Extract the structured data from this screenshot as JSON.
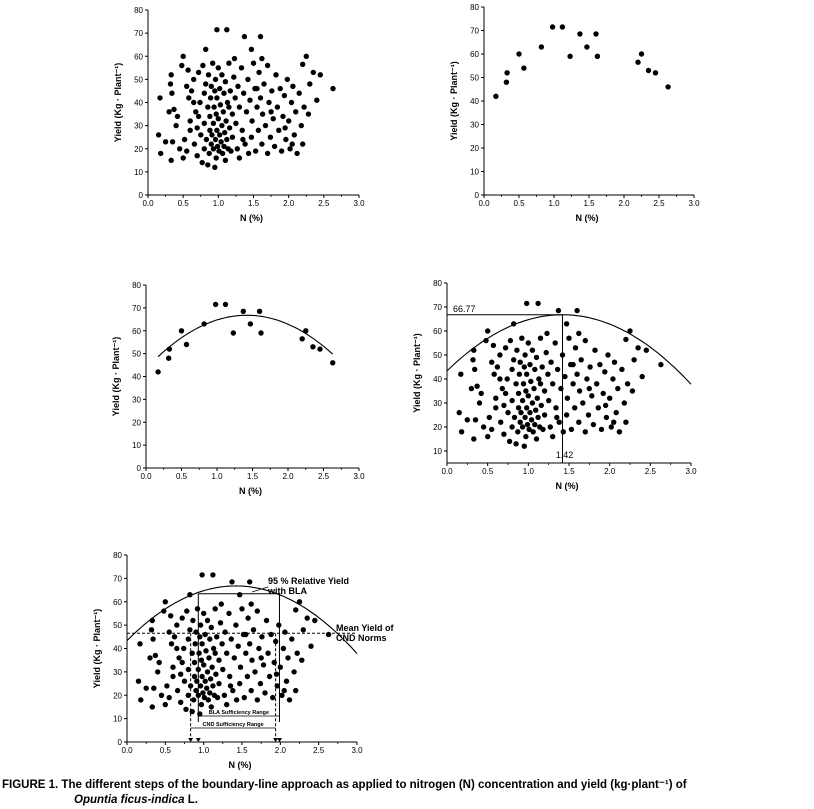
{
  "caption": {
    "line1": "FIGURE 1. The different steps of the boundary-line approach as applied to nitrogen (N) concentration and yield (kg·plant⁻¹) of",
    "species": "Opuntia ficus-indica",
    "suffix": " L."
  },
  "chart_data": [
    {
      "id": "a",
      "type": "scatter",
      "xlabel": "N (%)",
      "ylabel": "Yield (Kg · Plant⁻¹)",
      "xlim": [
        0,
        3
      ],
      "ylim": [
        0,
        80
      ],
      "xticks": [
        "0.0",
        "0.5",
        "1.0",
        "1.5",
        "2.0",
        "2.5",
        "3.0"
      ],
      "yticks": [
        "0",
        "10",
        "20",
        "30",
        "40",
        "50",
        "60",
        "70",
        "80"
      ],
      "points_set": "all"
    },
    {
      "id": "b",
      "type": "scatter",
      "xlabel": "N (%)",
      "ylabel": "Yield (Kg · Plant⁻¹)",
      "xlim": [
        0,
        3
      ],
      "ylim": [
        0,
        80
      ],
      "xticks": [
        "0.0",
        "0.5",
        "1.0",
        "1.5",
        "2.0",
        "2.5",
        "3.0"
      ],
      "yticks": [
        "0",
        "10",
        "20",
        "30",
        "40",
        "50",
        "60",
        "70",
        "80"
      ],
      "points_set": "boundary"
    },
    {
      "id": "c",
      "type": "scatter",
      "xlabel": "N (%)",
      "ylabel": "Yield (Kg · Plant⁻¹)",
      "xlim": [
        0,
        3
      ],
      "ylim": [
        0,
        80
      ],
      "xticks": [
        "0.0",
        "0.5",
        "1.0",
        "1.5",
        "2.0",
        "2.5",
        "3.0"
      ],
      "yticks": [
        "0",
        "10",
        "20",
        "30",
        "40",
        "50",
        "60",
        "70",
        "80"
      ],
      "points_set": "boundary",
      "fit_curve": true
    },
    {
      "id": "d",
      "type": "scatter",
      "xlabel": "N (%)",
      "ylabel": "Yield (Kg · Plant⁻¹)",
      "xlim": [
        0,
        3
      ],
      "ylim": [
        5,
        80
      ],
      "xticks": [
        "0.0",
        "0.5",
        "1.0",
        "1.5",
        "2.0",
        "2.5",
        "3.0"
      ],
      "yticks": [
        "10",
        "20",
        "30",
        "40",
        "50",
        "60",
        "70",
        "80"
      ],
      "points_set": "all",
      "fit_curve": true,
      "max_yield_label": "66.77",
      "optimum_n_label": "1.42",
      "max_yield": 66.77,
      "optimum_n": 1.42
    },
    {
      "id": "e",
      "type": "scatter",
      "xlabel": "N (%)",
      "ylabel": "Yield (Kg · Plant⁻¹)",
      "xlim": [
        0,
        3
      ],
      "ylim": [
        0,
        80
      ],
      "xticks": [
        "0.0",
        "0.5",
        "1.0",
        "1.5",
        "2.0",
        "2.5",
        "3.0"
      ],
      "yticks": [
        "0",
        "10",
        "20",
        "30",
        "40",
        "50",
        "60",
        "70",
        "80"
      ],
      "points_set": "all",
      "fit_curve": true,
      "relative_yield_95": 63.4,
      "mean_yield_cnd": 46.5,
      "bla_range": [
        0.93,
        1.78
      ],
      "cnd_range": [
        0.83,
        1.86
      ],
      "annotations": {
        "ry_line1": "95 % Relative Yield",
        "ry_line2": "with BLA",
        "mean_line1": "Mean Yield of",
        "mean_line2": "CND Norms",
        "bla_range_label": "BLA Sufficiency Range",
        "cnd_range_label": "CND Sufficiency Range"
      }
    }
  ],
  "fit_curve": {
    "form": "quadratic",
    "vertex_x": 1.42,
    "vertex_y": 66.77,
    "a": -11.6
  },
  "boundary_points": [
    [
      0.17,
      42
    ],
    [
      0.32,
      48
    ],
    [
      0.33,
      52
    ],
    [
      0.5,
      60
    ],
    [
      0.57,
      54
    ],
    [
      0.82,
      63
    ],
    [
      0.98,
      71.5
    ],
    [
      1.12,
      71.5
    ],
    [
      1.23,
      59
    ],
    [
      1.37,
      68.5
    ],
    [
      1.47,
      63
    ],
    [
      1.6,
      68.5
    ],
    [
      1.62,
      59
    ],
    [
      2.2,
      56.5
    ],
    [
      2.25,
      60
    ],
    [
      2.35,
      53
    ],
    [
      2.45,
      52
    ],
    [
      2.63,
      46
    ]
  ],
  "all_points": [
    [
      0.17,
      42
    ],
    [
      0.32,
      48
    ],
    [
      0.33,
      52
    ],
    [
      0.5,
      60
    ],
    [
      0.57,
      54
    ],
    [
      0.82,
      63
    ],
    [
      0.98,
      71.5
    ],
    [
      1.12,
      71.5
    ],
    [
      1.23,
      59
    ],
    [
      1.37,
      68.5
    ],
    [
      1.47,
      63
    ],
    [
      1.6,
      68.5
    ],
    [
      1.62,
      59
    ],
    [
      2.2,
      56.5
    ],
    [
      2.25,
      60
    ],
    [
      2.35,
      53
    ],
    [
      2.45,
      52
    ],
    [
      2.63,
      46
    ],
    [
      0.15,
      26
    ],
    [
      0.18,
      18
    ],
    [
      0.33,
      15
    ],
    [
      0.35,
      23
    ],
    [
      0.37,
      37
    ],
    [
      0.34,
      44
    ],
    [
      0.45,
      20
    ],
    [
      0.5,
      16
    ],
    [
      0.52,
      24
    ],
    [
      0.55,
      19
    ],
    [
      0.55,
      47
    ],
    [
      0.58,
      42
    ],
    [
      0.6,
      32
    ],
    [
      0.62,
      45
    ],
    [
      0.65,
      50
    ],
    [
      0.68,
      36
    ],
    [
      0.66,
      22
    ],
    [
      0.7,
      17
    ],
    [
      0.7,
      29
    ],
    [
      0.72,
      53
    ],
    [
      0.74,
      40
    ],
    [
      0.75,
      26
    ],
    [
      0.77,
      14
    ],
    [
      0.78,
      56
    ],
    [
      0.8,
      20
    ],
    [
      0.8,
      44
    ],
    [
      0.8,
      31
    ],
    [
      0.82,
      48
    ],
    [
      0.83,
      24
    ],
    [
      0.85,
      38
    ],
    [
      0.85,
      13
    ],
    [
      0.86,
      52
    ],
    [
      0.87,
      18
    ],
    [
      0.88,
      28
    ],
    [
      0.88,
      34
    ],
    [
      0.89,
      42
    ],
    [
      0.9,
      22
    ],
    [
      0.9,
      47
    ],
    [
      0.91,
      26
    ],
    [
      0.92,
      57
    ],
    [
      0.93,
      20
    ],
    [
      0.93,
      31
    ],
    [
      0.94,
      38
    ],
    [
      0.95,
      45
    ],
    [
      0.95,
      12
    ],
    [
      0.96,
      24
    ],
    [
      0.96,
      50
    ],
    [
      0.97,
      16
    ],
    [
      0.97,
      35
    ],
    [
      0.98,
      28
    ],
    [
      0.98,
      42
    ],
    [
      0.99,
      21
    ],
    [
      1.0,
      55
    ],
    [
      1.0,
      33
    ],
    [
      1.01,
      19
    ],
    [
      1.02,
      26
    ],
    [
      1.02,
      46
    ],
    [
      1.03,
      39
    ],
    [
      1.04,
      23
    ],
    [
      1.05,
      30
    ],
    [
      1.05,
      52
    ],
    [
      1.06,
      18
    ],
    [
      1.07,
      36
    ],
    [
      1.08,
      44
    ],
    [
      1.08,
      21
    ],
    [
      1.09,
      27
    ],
    [
      1.1,
      49
    ],
    [
      1.1,
      15
    ],
    [
      1.11,
      32
    ],
    [
      1.12,
      24
    ],
    [
      1.13,
      40
    ],
    [
      1.14,
      20
    ],
    [
      1.15,
      57
    ],
    [
      1.16,
      29
    ],
    [
      1.17,
      45
    ],
    [
      1.18,
      19
    ],
    [
      1.2,
      35
    ],
    [
      1.2,
      25
    ],
    [
      1.22,
      51
    ],
    [
      1.24,
      42
    ],
    [
      1.25,
      31
    ],
    [
      1.27,
      20
    ],
    [
      1.28,
      47
    ],
    [
      1.3,
      38
    ],
    [
      1.3,
      16
    ],
    [
      1.33,
      55
    ],
    [
      1.34,
      28
    ],
    [
      1.36,
      44
    ],
    [
      1.38,
      22
    ],
    [
      1.4,
      36
    ],
    [
      1.42,
      50
    ],
    [
      1.43,
      18
    ],
    [
      1.45,
      41
    ],
    [
      1.47,
      25
    ],
    [
      1.48,
      32
    ],
    [
      1.5,
      57
    ],
    [
      1.52,
      46
    ],
    [
      1.53,
      19
    ],
    [
      1.55,
      38
    ],
    [
      1.57,
      28
    ],
    [
      1.58,
      53
    ],
    [
      1.6,
      42
    ],
    [
      1.62,
      22
    ],
    [
      1.63,
      35
    ],
    [
      1.65,
      48
    ],
    [
      1.67,
      30
    ],
    [
      1.7,
      18
    ],
    [
      1.7,
      56
    ],
    [
      1.72,
      40
    ],
    [
      1.74,
      25
    ],
    [
      1.76,
      45
    ],
    [
      1.78,
      33
    ],
    [
      1.8,
      21
    ],
    [
      1.82,
      52
    ],
    [
      1.84,
      38
    ],
    [
      1.86,
      28
    ],
    [
      1.88,
      46
    ],
    [
      1.9,
      19
    ],
    [
      1.92,
      34
    ],
    [
      1.94,
      43
    ],
    [
      1.96,
      24
    ],
    [
      1.98,
      50
    ],
    [
      2.0,
      32
    ],
    [
      2.02,
      20
    ],
    [
      2.04,
      40
    ],
    [
      2.06,
      47
    ],
    [
      2.08,
      26
    ],
    [
      2.1,
      36
    ],
    [
      2.12,
      18
    ],
    [
      2.15,
      44
    ],
    [
      2.18,
      30
    ],
    [
      2.2,
      22
    ],
    [
      2.22,
      38
    ],
    [
      2.28,
      35
    ],
    [
      0.4,
      30
    ],
    [
      0.42,
      34
    ],
    [
      0.6,
      28
    ],
    [
      0.65,
      40
    ],
    [
      0.72,
      34
    ],
    [
      1.15,
      38
    ],
    [
      1.35,
      24
    ],
    [
      1.55,
      46
    ],
    [
      1.75,
      36
    ],
    [
      1.95,
      29
    ],
    [
      2.05,
      22
    ],
    [
      2.3,
      48
    ],
    [
      2.4,
      41
    ],
    [
      0.48,
      56
    ],
    [
      0.3,
      36
    ],
    [
      0.25,
      23
    ]
  ]
}
